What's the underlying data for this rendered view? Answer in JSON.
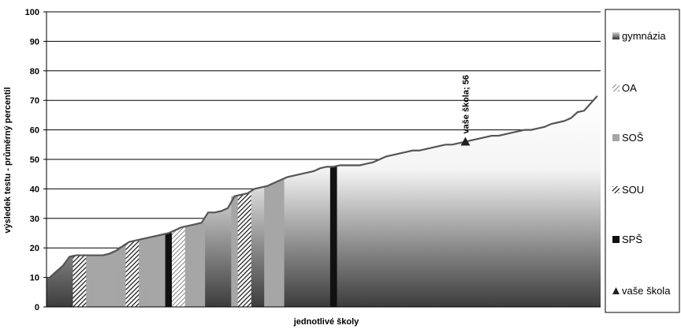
{
  "chart_data": {
    "type": "area",
    "ylabel": "výsledek testu - průměrný percentil",
    "xlabel": "jednotlivé školy",
    "ylim": [
      0,
      100
    ],
    "yticks": [
      0,
      10,
      20,
      30,
      40,
      50,
      60,
      70,
      80,
      90,
      100
    ],
    "grid": true,
    "legend_position": "right",
    "series_line": [
      10,
      12,
      14,
      17,
      17.5,
      17.5,
      17.5,
      17.5,
      17.5,
      18,
      19,
      20.5,
      22,
      22.5,
      23,
      23.5,
      24,
      24.5,
      25,
      26,
      27,
      27.5,
      28,
      28.5,
      32,
      32,
      32.5,
      33.5,
      37.5,
      38,
      38.5,
      40,
      40.5,
      41,
      42,
      43,
      44,
      44.5,
      45,
      45.5,
      46,
      47,
      47.5,
      47.5,
      48,
      48,
      48,
      48,
      48.5,
      49,
      50,
      51,
      51.5,
      52,
      52.5,
      53,
      53,
      53.5,
      54,
      54.5,
      55,
      55,
      55.5,
      56,
      56.5,
      57,
      57.5,
      58,
      58,
      58.5,
      59,
      59.5,
      60,
      60,
      60.5,
      61,
      62,
      62.5,
      63,
      64,
      66,
      66.5,
      69,
      71.5
    ],
    "schools": [
      {
        "type": "gymnázia"
      },
      {
        "type": "gymnázia"
      },
      {
        "type": "gymnázia"
      },
      {
        "type": "gymnázia"
      },
      {
        "type": "SOU"
      },
      {
        "type": "SOU"
      },
      {
        "type": "SOŠ"
      },
      {
        "type": "SOŠ"
      },
      {
        "type": "SOŠ"
      },
      {
        "type": "SOŠ"
      },
      {
        "type": "SOŠ"
      },
      {
        "type": "SOŠ"
      },
      {
        "type": "SOU"
      },
      {
        "type": "SOU"
      },
      {
        "type": "SOŠ"
      },
      {
        "type": "SOŠ"
      },
      {
        "type": "SOŠ"
      },
      {
        "type": "SOŠ"
      },
      {
        "type": "SPŠ"
      },
      {
        "type": "OA"
      },
      {
        "type": "OA"
      },
      {
        "type": "SOŠ"
      },
      {
        "type": "SOŠ"
      },
      {
        "type": "SOŠ"
      },
      {
        "type": "gymnázia"
      },
      {
        "type": "gymnázia"
      },
      {
        "type": "gymnázia"
      },
      {
        "type": "gymnázia"
      },
      {
        "type": "SOŠ"
      },
      {
        "type": "SOU"
      },
      {
        "type": "SOU"
      },
      {
        "type": "gymnázia"
      },
      {
        "type": "gymnázia"
      },
      {
        "type": "SOŠ"
      },
      {
        "type": "SOŠ"
      },
      {
        "type": "SOŠ"
      },
      {
        "type": "gymnázia"
      },
      {
        "type": "gymnázia"
      },
      {
        "type": "gymnázia"
      },
      {
        "type": "gymnázia"
      },
      {
        "type": "gymnázia"
      },
      {
        "type": "gymnázia"
      },
      {
        "type": "gymnázia"
      },
      {
        "type": "SPŠ"
      },
      {
        "type": "gymnázia"
      },
      {
        "type": "gymnázia"
      },
      {
        "type": "gymnázia"
      },
      {
        "type": "gymnázia"
      },
      {
        "type": "gymnázia"
      },
      {
        "type": "gymnázia"
      },
      {
        "type": "gymnázia"
      },
      {
        "type": "gymnázia"
      },
      {
        "type": "gymnázia"
      },
      {
        "type": "gymnázia"
      },
      {
        "type": "gymnázia"
      },
      {
        "type": "gymnázia"
      },
      {
        "type": "gymnázia"
      },
      {
        "type": "gymnázia"
      },
      {
        "type": "gymnázia"
      },
      {
        "type": "gymnázia"
      },
      {
        "type": "gymnázia"
      },
      {
        "type": "gymnázia"
      },
      {
        "type": "gymnázia"
      },
      {
        "type": "gymnázia"
      },
      {
        "type": "gymnázia"
      },
      {
        "type": "gymnázia"
      },
      {
        "type": "gymnázia"
      },
      {
        "type": "gymnázia"
      },
      {
        "type": "gymnázia"
      },
      {
        "type": "gymnázia"
      },
      {
        "type": "gymnázia"
      },
      {
        "type": "gymnázia"
      },
      {
        "type": "gymnázia"
      },
      {
        "type": "gymnázia"
      },
      {
        "type": "gymnázia"
      },
      {
        "type": "gymnázia"
      },
      {
        "type": "gymnázia"
      },
      {
        "type": "gymnázia"
      },
      {
        "type": "gymnázia"
      },
      {
        "type": "gymnázia"
      },
      {
        "type": "gymnázia"
      },
      {
        "type": "gymnázia"
      },
      {
        "type": "gymnázia"
      },
      {
        "type": "gymnázia"
      }
    ],
    "marker": {
      "label": "vaše škola; 56",
      "value": 56,
      "index": 63
    },
    "legend": [
      {
        "key": "gymnázia",
        "label": "gymnázia",
        "style": "gradient"
      },
      {
        "key": "OA",
        "label": "OA",
        "style": "hatch"
      },
      {
        "key": "SOŠ",
        "label": "SOŠ",
        "style": "gray"
      },
      {
        "key": "SOU",
        "label": "SOU",
        "style": "crosshatch"
      },
      {
        "key": "SPŠ",
        "label": "SPŠ",
        "style": "black"
      },
      {
        "key": "vaše škola",
        "label": "vaše škola",
        "style": "triangle"
      }
    ]
  }
}
